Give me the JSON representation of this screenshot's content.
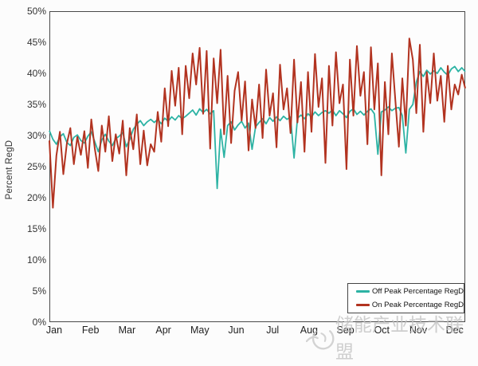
{
  "chart_data": {
    "type": "line",
    "title": "",
    "xlabel": "",
    "ylabel": "Percent RegD",
    "ylim": [
      0,
      50
    ],
    "grid": false,
    "legend_position": "bottom-right",
    "y_ticks": [
      "50%",
      "45%",
      "40%",
      "35%",
      "30%",
      "25%",
      "20%",
      "15%",
      "10%",
      "5%",
      "0%"
    ],
    "x_tick_labels": [
      "Jan",
      "Feb",
      "Mar",
      "Apr",
      "May",
      "Jun",
      "Jul",
      "Aug",
      "Sep",
      "Oct",
      "Nov",
      "Dec"
    ],
    "series": [
      {
        "name": "Off Peak Percentage RegD",
        "color": "#2db3a4",
        "stroke_width": 1.8,
        "values": [
          30.8,
          29.4,
          28.6,
          29.8,
          30.3,
          28.9,
          28.4,
          29.7,
          30.1,
          29.2,
          28.8,
          29.9,
          30.6,
          29.0,
          27.4,
          29.3,
          30.2,
          29.1,
          28.4,
          29.5,
          29.9,
          30.5,
          28.2,
          29.4,
          31.0,
          31.8,
          32.4,
          31.6,
          32.2,
          32.6,
          32.1,
          32.6,
          31.9,
          32.8,
          32.3,
          33.0,
          32.5,
          33.2,
          32.7,
          33.1,
          33.6,
          34.1,
          33.3,
          34.3,
          33.7,
          34.2,
          33.5,
          34.0,
          21.5,
          31.0,
          26.5,
          31.6,
          32.2,
          30.9,
          31.7,
          32.3,
          31.2,
          32.0,
          27.8,
          31.4,
          32.1,
          32.7,
          31.9,
          32.9,
          32.3,
          33.0,
          32.4,
          33.1,
          32.6,
          33.0,
          26.4,
          32.8,
          33.3,
          32.7,
          33.5,
          33.0,
          33.8,
          33.2,
          33.7,
          34.0,
          33.6,
          34.1,
          33.2,
          34.0,
          33.5,
          32.9,
          33.9,
          34.3,
          33.4,
          33.9,
          33.3,
          33.9,
          34.3,
          33.5,
          27.0,
          33.8,
          34.1,
          34.6,
          34.0,
          34.4,
          34.5,
          33.2,
          27.2,
          34.2,
          35.0,
          38.6,
          40.3,
          39.5,
          40.5,
          39.9,
          40.4,
          40.0,
          40.9,
          40.2,
          39.7,
          40.7,
          41.1,
          40.3,
          40.9,
          40.3
        ]
      },
      {
        "name": "On Peak Percentage RegD",
        "color": "#b23320",
        "stroke_width": 2.0,
        "values": [
          29.2,
          18.4,
          26.8,
          30.6,
          23.8,
          28.7,
          31.2,
          25.4,
          29.8,
          26.9,
          30.7,
          24.8,
          32.6,
          27.9,
          24.3,
          31.6,
          27.4,
          33.1,
          25.9,
          30.2,
          27.1,
          32.4,
          23.6,
          31.2,
          27.8,
          33.4,
          25.4,
          30.8,
          25.2,
          28.6,
          27.4,
          33.8,
          29.0,
          37.6,
          31.5,
          40.4,
          34.8,
          40.9,
          30.2,
          41.2,
          36.0,
          43.2,
          38.2,
          44.1,
          33.5,
          43.6,
          27.9,
          42.4,
          35.2,
          43.8,
          30.2,
          39.6,
          28.8,
          37.2,
          40.2,
          32.4,
          38.7,
          27.6,
          35.8,
          31.2,
          38.2,
          29.6,
          40.6,
          33.2,
          36.8,
          28.1,
          41.4,
          34.2,
          37.6,
          30.4,
          42.2,
          32.1,
          38.6,
          27.4,
          40.2,
          30.6,
          43.1,
          34.6,
          39.2,
          25.6,
          41.2,
          31.6,
          43.4,
          35.2,
          38.2,
          24.6,
          42.2,
          33.2,
          44.4,
          36.4,
          40.2,
          28.6,
          44.2,
          34.2,
          41.6,
          23.6,
          38.6,
          30.2,
          43.2,
          35.6,
          28.2,
          39.2,
          31.6,
          45.6,
          42.2,
          33.6,
          44.6,
          30.6,
          40.2,
          35.2,
          43.2,
          35.6,
          39.6,
          32.2,
          41.2,
          34.2,
          38.2,
          36.6,
          39.8,
          37.6
        ]
      }
    ]
  },
  "watermark": {
    "text": "储能产业技术联盟",
    "logo": "swirl-logo",
    "color": "#c2c2c2"
  },
  "colors": {
    "axis_text": "#333333",
    "plot_border": "#4a4a4a",
    "background": "#fcfcfc"
  }
}
